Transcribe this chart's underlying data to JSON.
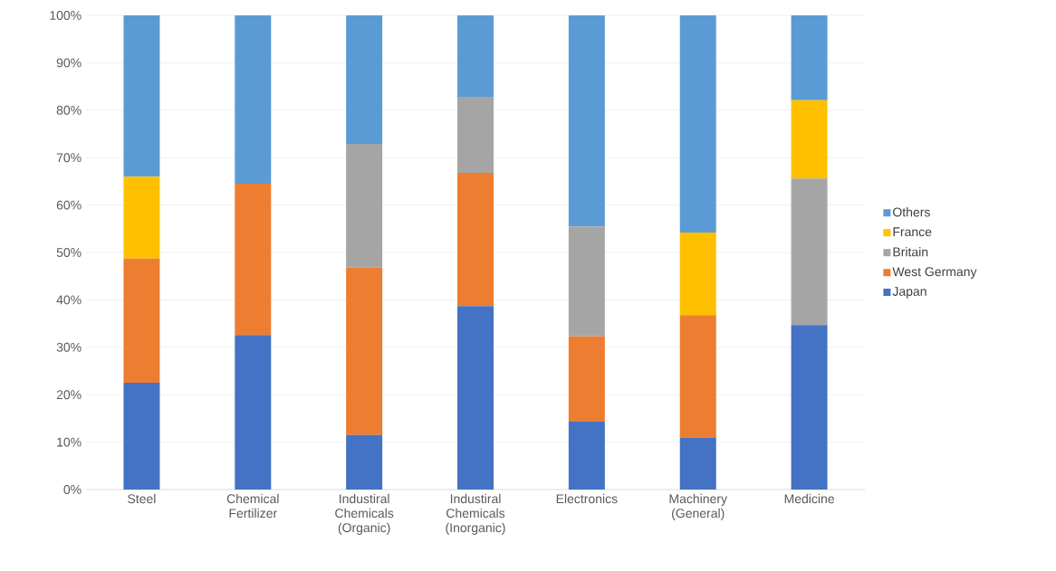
{
  "chart_data": {
    "type": "bar",
    "stacked": true,
    "categories": [
      "Steel",
      "Chemical Fertilizer",
      "Industiral Chemicals (Organic)",
      "Industiral Chemicals (Inorganic)",
      "Electronics",
      "Machinery (General)",
      "Medicine"
    ],
    "series": [
      {
        "name": "Japan",
        "color": "#4472c4",
        "values": [
          22.5,
          32.6,
          11.5,
          38.7,
          14.3,
          10.9,
          34.7
        ]
      },
      {
        "name": "West Germany",
        "color": "#ed7d31",
        "values": [
          26.2,
          31.9,
          35.3,
          28.1,
          18.0,
          25.9,
          0
        ]
      },
      {
        "name": "Britain",
        "color": "#a5a5a5",
        "values": [
          0,
          0,
          26.1,
          16.0,
          23.2,
          0,
          30.9
        ]
      },
      {
        "name": "France",
        "color": "#ffc000",
        "values": [
          17.3,
          0,
          0,
          0,
          0,
          17.4,
          16.5
        ]
      },
      {
        "name": "Others",
        "color": "#5b9bd5",
        "values": [
          34.0,
          35.5,
          27.1,
          17.2,
          44.5,
          45.8,
          17.9
        ]
      }
    ],
    "ylim": [
      0,
      100
    ],
    "yticks": [
      {
        "value": 0,
        "label": "0%"
      },
      {
        "value": 10,
        "label": "10%"
      },
      {
        "value": 20,
        "label": "20%"
      },
      {
        "value": 30,
        "label": "30%"
      },
      {
        "value": 40,
        "label": "40%"
      },
      {
        "value": 50,
        "label": "50%"
      },
      {
        "value": 60,
        "label": "60%"
      },
      {
        "value": 70,
        "label": "70%"
      },
      {
        "value": 80,
        "label": "80%"
      },
      {
        "value": 90,
        "label": "90%"
      },
      {
        "value": 100,
        "label": "100%"
      }
    ],
    "grid": "y",
    "legend": "right"
  }
}
